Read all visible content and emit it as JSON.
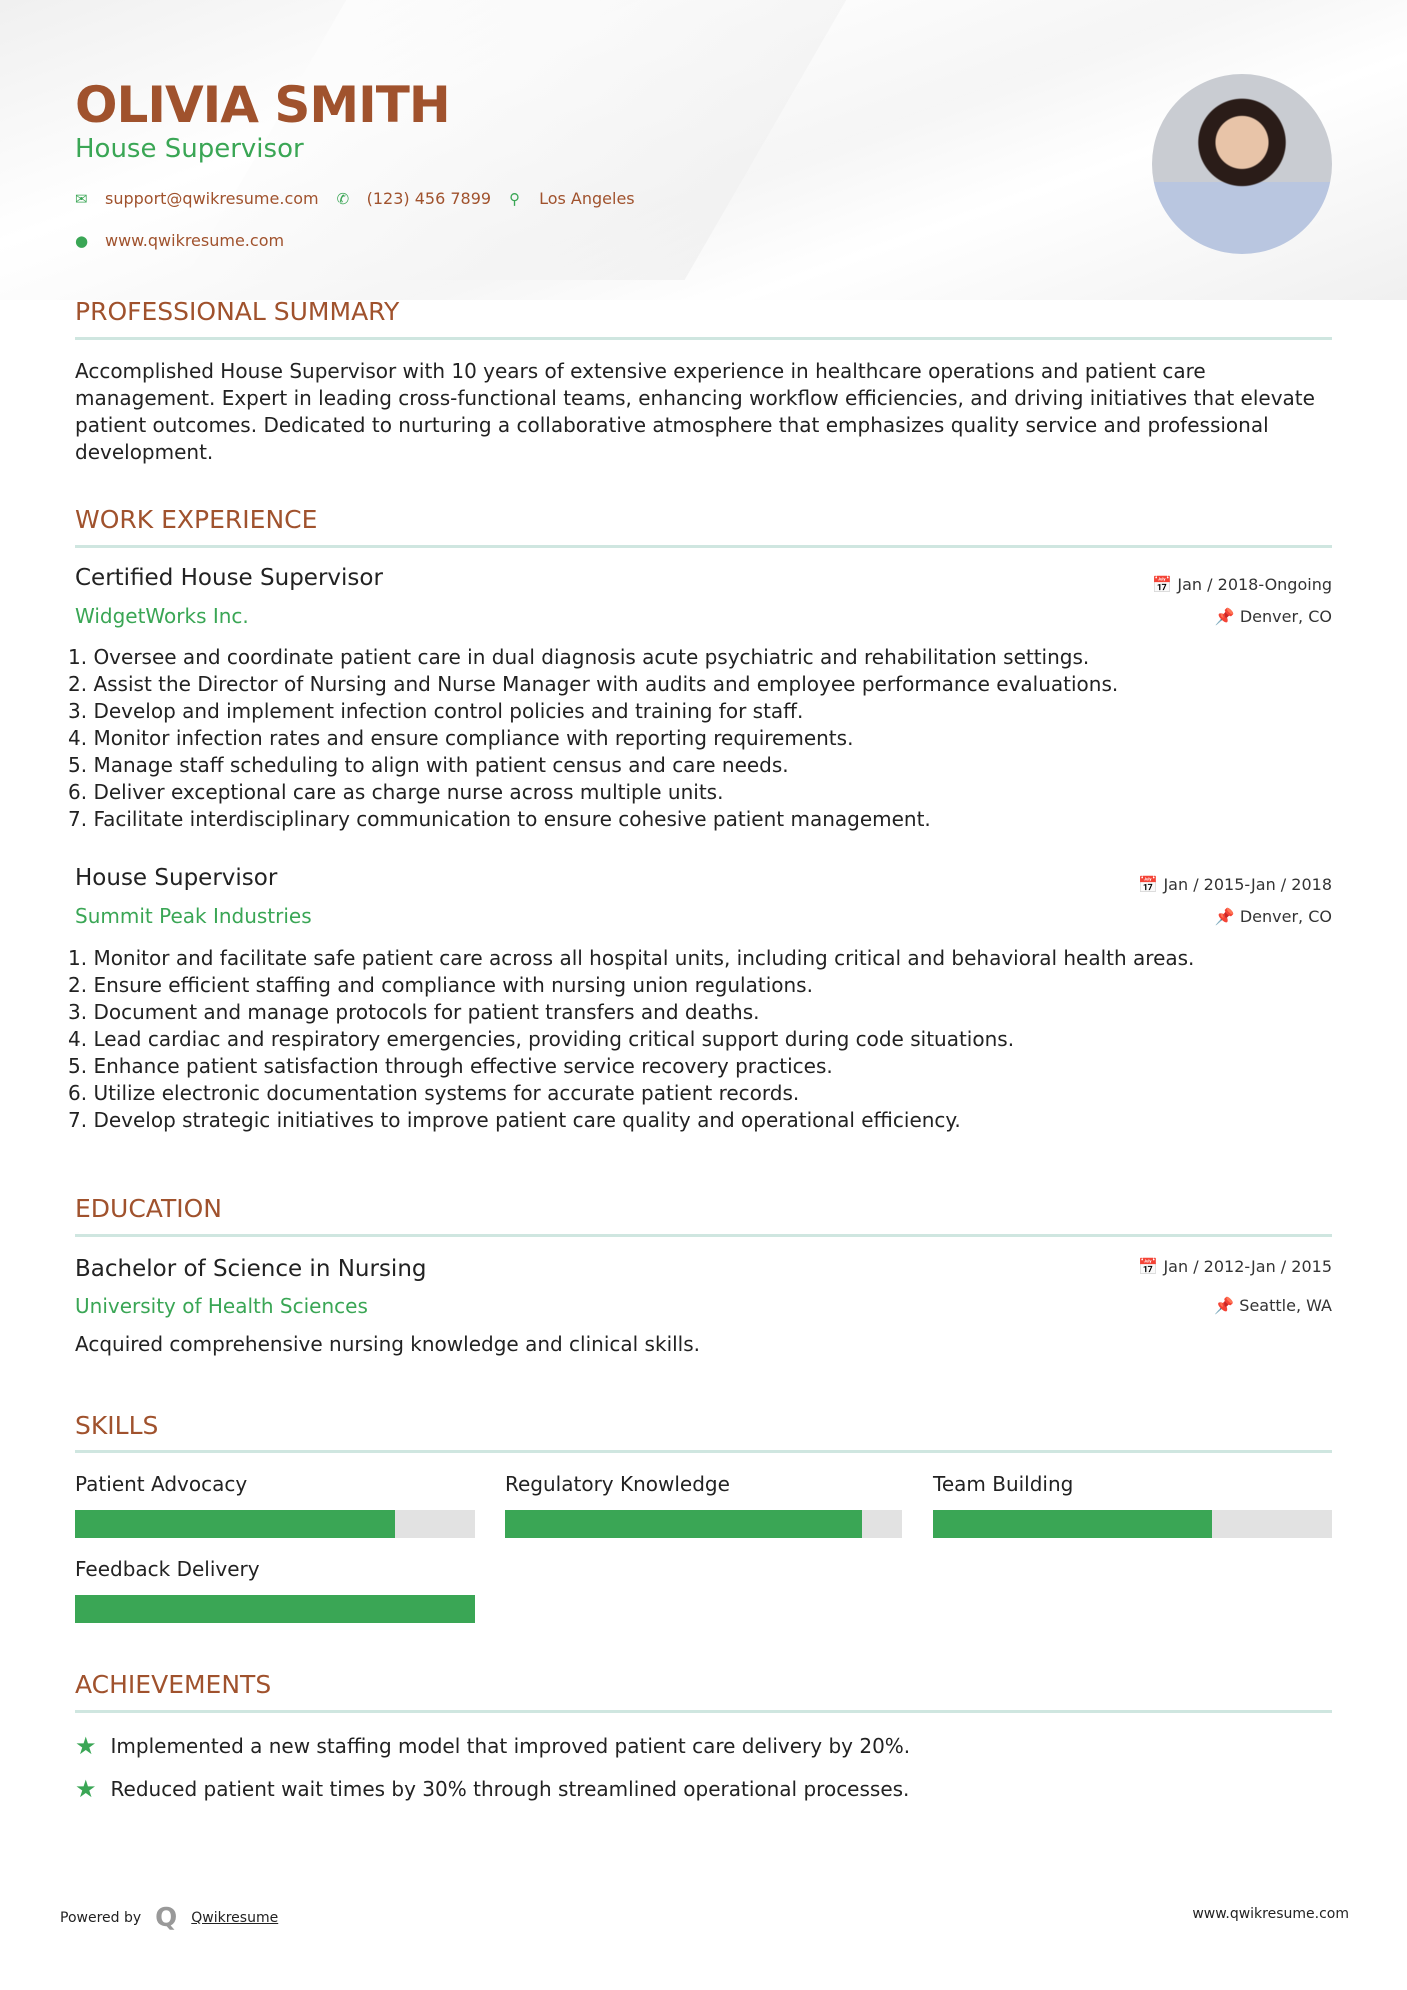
{
  "header": {
    "name": "OLIVIA SMITH",
    "title": "House Supervisor",
    "email": "support@qwikresume.com",
    "phone": "(123) 456 7899",
    "location": "Los Angeles",
    "website": "www.qwikresume.com"
  },
  "colors": {
    "accent": "#a0522d",
    "green": "#3aa655"
  },
  "summary": {
    "heading": "PROFESSIONAL SUMMARY",
    "text": "Accomplished House Supervisor with 10 years of extensive experience in healthcare operations and patient care management. Expert in leading cross-functional teams, enhancing workflow efficiencies, and driving initiatives that elevate patient outcomes. Dedicated to nurturing a collaborative atmosphere that emphasizes quality service and professional development."
  },
  "work": {
    "heading": "WORK EXPERIENCE",
    "jobs": [
      {
        "title": "Certified House Supervisor",
        "company": "WidgetWorks Inc.",
        "date": "Jan / 2018-Ongoing",
        "location": "Denver, CO",
        "bullets": [
          "1. Oversee and coordinate patient care in dual diagnosis acute psychiatric and rehabilitation settings.",
          "2. Assist the Director of Nursing and Nurse Manager with audits and employee performance evaluations.",
          "3. Develop and implement infection control policies and training for staff.",
          "4. Monitor infection rates and ensure compliance with reporting requirements.",
          "5. Manage staff scheduling to align with patient census and care needs.",
          "6. Deliver exceptional care as charge nurse across multiple units.",
          "7. Facilitate interdisciplinary communication to ensure cohesive patient management."
        ]
      },
      {
        "title": "House Supervisor",
        "company": "Summit Peak Industries",
        "date": "Jan / 2015-Jan / 2018",
        "location": "Denver, CO",
        "bullets": [
          "1. Monitor and facilitate safe patient care across all hospital units, including critical and behavioral health areas.",
          "2. Ensure efficient staffing and compliance with nursing union regulations.",
          "3. Document and manage protocols for patient transfers and deaths.",
          "4. Lead cardiac and respiratory emergencies, providing critical support during code situations.",
          "5. Enhance patient satisfaction through effective service recovery practices.",
          "6. Utilize electronic documentation systems for accurate patient records.",
          "7. Develop strategic initiatives to improve patient care quality and operational efficiency."
        ]
      }
    ]
  },
  "education": {
    "heading": "EDUCATION",
    "degree": "Bachelor of Science in Nursing",
    "school": "University of Health Sciences",
    "date": "Jan / 2012-Jan / 2015",
    "location": "Seattle, WA",
    "description": "Acquired comprehensive nursing knowledge and clinical skills."
  },
  "skills": {
    "heading": "SKILLS",
    "items": [
      {
        "name": "Patient Advocacy",
        "level": 0.8
      },
      {
        "name": "Regulatory Knowledge",
        "level": 0.9
      },
      {
        "name": "Team Building",
        "level": 0.7
      },
      {
        "name": "Feedback Delivery",
        "level": 1.0
      }
    ]
  },
  "achievements": {
    "heading": "ACHIEVEMENTS",
    "items": [
      "Implemented a new staffing model that improved patient care delivery by 20%.",
      "Reduced patient wait times by 30% through streamlined operational processes."
    ]
  },
  "footer": {
    "powered_by": "Powered by",
    "brand": "Qwikresume",
    "website": "www.qwikresume.com"
  }
}
